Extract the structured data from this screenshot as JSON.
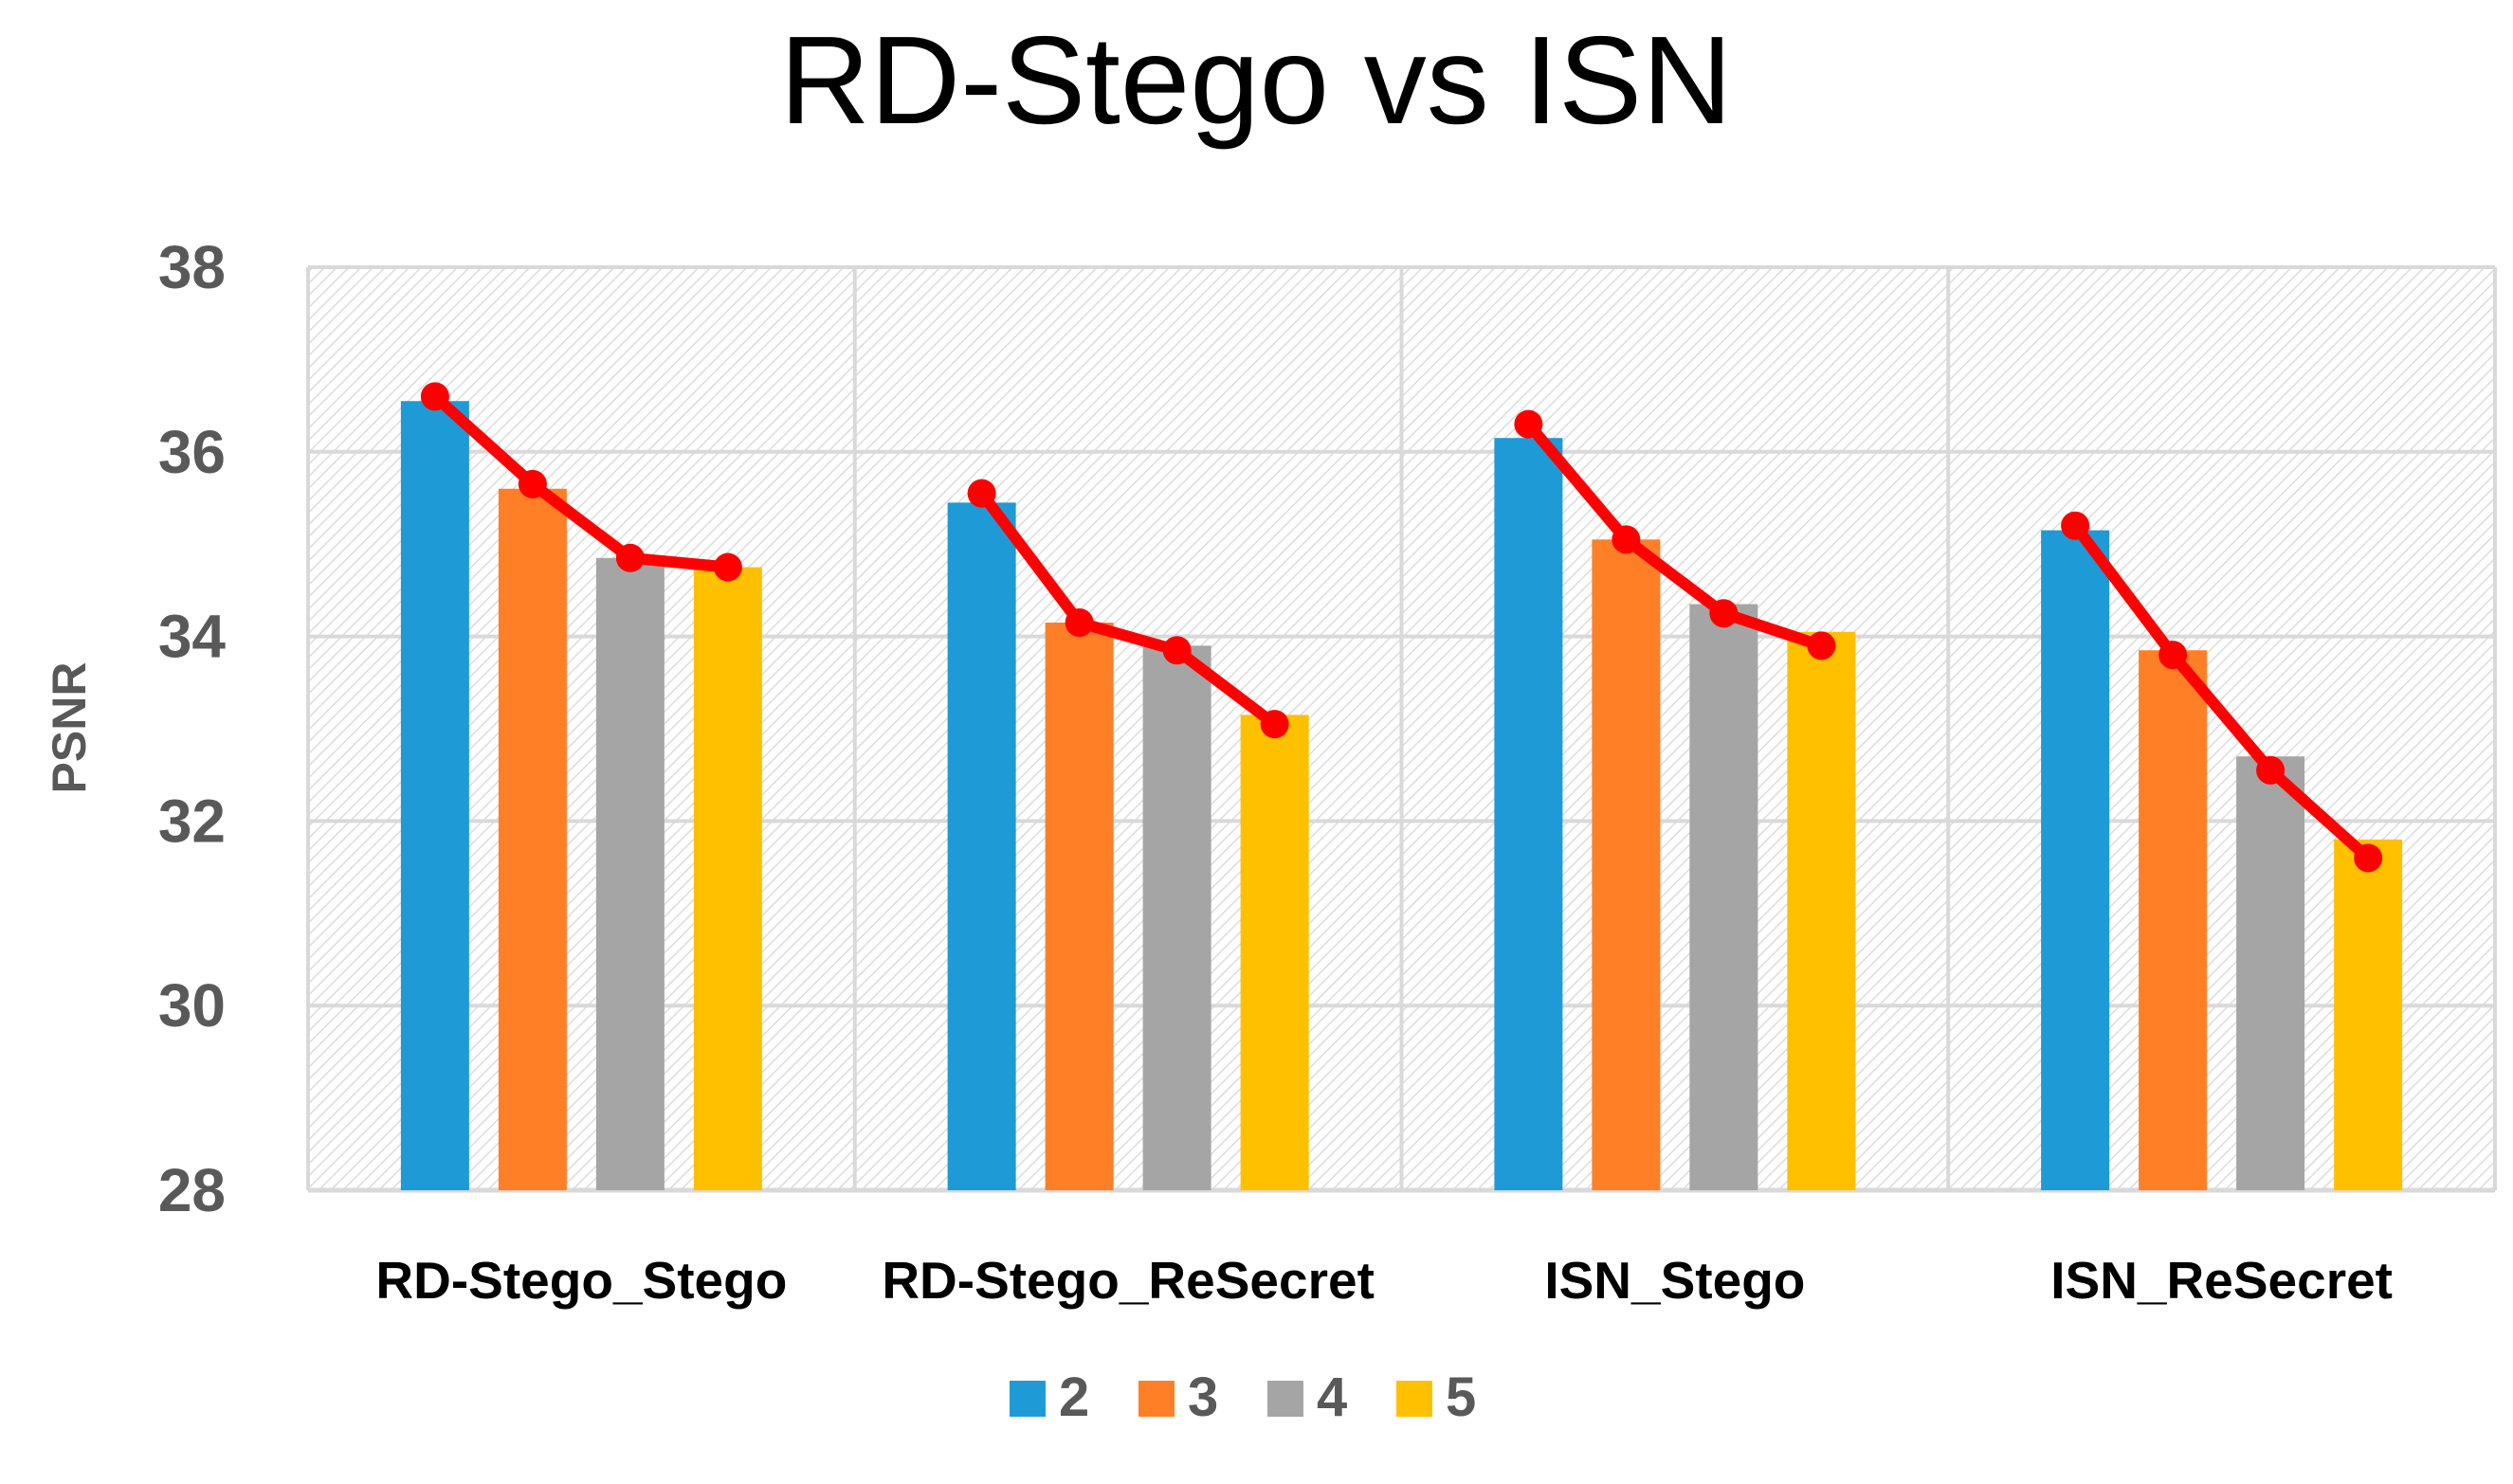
{
  "chart_data": {
    "type": "bar",
    "title": "RD-Stego vs ISN",
    "xlabel": "",
    "ylabel": "PSNR",
    "ylim": [
      28,
      38
    ],
    "yticks": [
      "28",
      "30",
      "32",
      "34",
      "36",
      "38"
    ],
    "grid": true,
    "legend_position": "bottom",
    "categories": [
      "RD-Stego_Stego",
      "RD-Stego_ReSecret",
      "ISN_Stego",
      "ISN_ReSecret"
    ],
    "series": [
      {
        "name": "2",
        "color": "#1E9AD6",
        "values": [
          36.55,
          35.45,
          36.15,
          35.15
        ]
      },
      {
        "name": "3",
        "color": "#FF7F27",
        "values": [
          35.6,
          34.15,
          35.05,
          33.85
        ]
      },
      {
        "name": "4",
        "color": "#A5A5A5",
        "values": [
          34.85,
          33.9,
          34.35,
          32.7
        ]
      },
      {
        "name": "5",
        "color": "#FFC000",
        "values": [
          34.75,
          33.15,
          34.05,
          31.8
        ]
      }
    ],
    "trend_lines": {
      "color": "#FF0000",
      "values": [
        [
          36.6,
          35.65,
          34.85,
          34.75
        ],
        [
          35.55,
          34.15,
          33.85,
          33.05
        ],
        [
          36.3,
          35.05,
          34.25,
          33.9
        ],
        [
          35.2,
          33.8,
          32.55,
          31.6
        ]
      ]
    }
  }
}
